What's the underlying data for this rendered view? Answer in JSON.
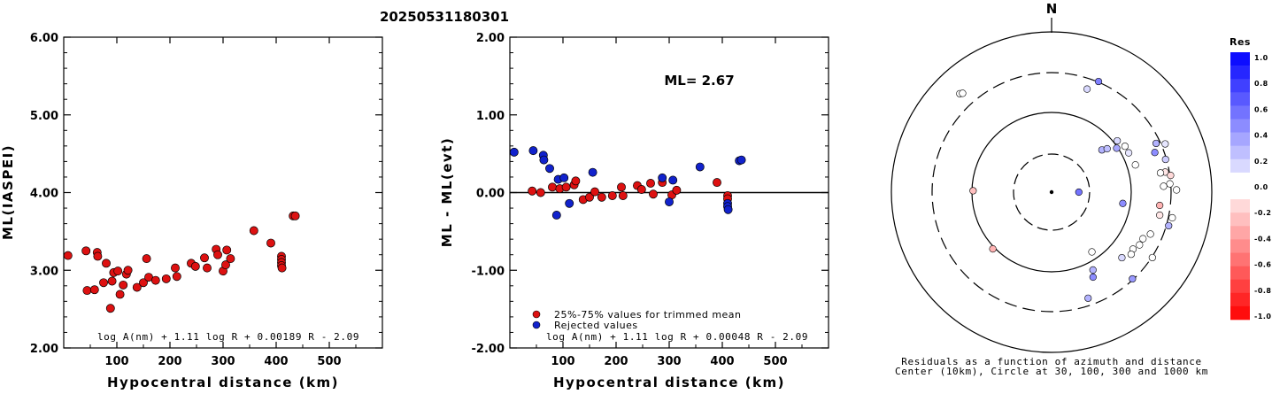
{
  "title": "20250531180301",
  "colors": {
    "trimmed": "#dd1111",
    "rejected": "#1122cc",
    "zero_line": "#000000"
  },
  "chart_data": [
    {
      "type": "scatter",
      "id": "ml-vs-distance",
      "ylabel": "ML(IASPEI)",
      "xlabel": "Hypocentral distance (km)",
      "xlim": [
        0,
        600
      ],
      "ylim": [
        2.0,
        6.0
      ],
      "xticks": [
        "100",
        "200",
        "300",
        "400",
        "500"
      ],
      "yticks": [
        "2.00",
        "3.00",
        "4.00",
        "5.00",
        "6.00"
      ],
      "formula": "log A(nm) + 1.11 log R + 0.00189 R - 2.09",
      "points": [
        [
          8,
          3.19
        ],
        [
          42,
          3.25
        ],
        [
          44,
          2.74
        ],
        [
          58,
          2.75
        ],
        [
          63,
          3.23
        ],
        [
          64,
          3.18
        ],
        [
          75,
          2.84
        ],
        [
          80,
          3.09
        ],
        [
          88,
          2.51
        ],
        [
          91,
          2.86
        ],
        [
          94,
          2.97
        ],
        [
          102,
          2.99
        ],
        [
          106,
          2.69
        ],
        [
          112,
          2.81
        ],
        [
          118,
          2.95
        ],
        [
          121,
          3.0
        ],
        [
          138,
          2.78
        ],
        [
          150,
          2.84
        ],
        [
          156,
          3.15
        ],
        [
          160,
          2.91
        ],
        [
          173,
          2.87
        ],
        [
          193,
          2.89
        ],
        [
          210,
          3.03
        ],
        [
          213,
          2.92
        ],
        [
          240,
          3.09
        ],
        [
          248,
          3.05
        ],
        [
          265,
          3.16
        ],
        [
          270,
          3.03
        ],
        [
          287,
          3.27
        ],
        [
          290,
          3.2
        ],
        [
          300,
          2.99
        ],
        [
          305,
          3.07
        ],
        [
          307,
          3.26
        ],
        [
          314,
          3.15
        ],
        [
          358,
          3.51
        ],
        [
          390,
          3.35
        ],
        [
          410,
          3.18
        ],
        [
          410,
          3.14
        ],
        [
          410,
          3.1
        ],
        [
          410,
          3.06
        ],
        [
          411,
          3.03
        ],
        [
          432,
          3.7
        ],
        [
          436,
          3.7
        ]
      ]
    },
    {
      "type": "scatter",
      "id": "residual-vs-distance",
      "ylabel": "ML - ML(evt)",
      "xlabel": "Hypocentral distance (km)",
      "xlim": [
        0,
        600
      ],
      "ylim": [
        -2.0,
        2.0
      ],
      "xticks": [
        "100",
        "200",
        "300",
        "400",
        "500"
      ],
      "yticks": [
        "-2.00",
        "-1.00",
        "0.00",
        "1.00",
        "2.00"
      ],
      "annotation": "ML= 2.67",
      "formula": "log A(nm) + 1.11 log R + 0.00048 R - 2.09",
      "legend": [
        {
          "label": "25%-75% values for trimmed mean",
          "group": "trimmed"
        },
        {
          "label": "Rejected values",
          "group": "rejected"
        }
      ],
      "series": [
        {
          "group": "trimmed",
          "points": [
            [
              42,
              0.02
            ],
            [
              58,
              0.0
            ],
            [
              80,
              0.07
            ],
            [
              94,
              0.05
            ],
            [
              106,
              0.07
            ],
            [
              121,
              0.1
            ],
            [
              124,
              0.15
            ],
            [
              138,
              -0.09
            ],
            [
              150,
              -0.06
            ],
            [
              160,
              0.01
            ],
            [
              173,
              -0.06
            ],
            [
              193,
              -0.04
            ],
            [
              210,
              0.07
            ],
            [
              213,
              -0.04
            ],
            [
              240,
              0.09
            ],
            [
              248,
              0.04
            ],
            [
              265,
              0.12
            ],
            [
              270,
              -0.02
            ],
            [
              287,
              0.13
            ],
            [
              305,
              -0.03
            ],
            [
              314,
              0.03
            ],
            [
              390,
              0.13
            ],
            [
              410,
              -0.04
            ],
            [
              410,
              -0.08
            ]
          ]
        },
        {
          "group": "rejected",
          "points": [
            [
              8,
              0.52
            ],
            [
              44,
              0.54
            ],
            [
              63,
              0.48
            ],
            [
              64,
              0.42
            ],
            [
              75,
              0.31
            ],
            [
              88,
              -0.29
            ],
            [
              91,
              0.17
            ],
            [
              102,
              0.19
            ],
            [
              112,
              -0.14
            ],
            [
              156,
              0.26
            ],
            [
              287,
              0.19
            ],
            [
              300,
              -0.12
            ],
            [
              307,
              0.16
            ],
            [
              358,
              0.33
            ],
            [
              410,
              -0.14
            ],
            [
              410,
              -0.18
            ],
            [
              411,
              -0.22
            ],
            [
              432,
              0.41
            ],
            [
              436,
              0.42
            ]
          ]
        }
      ]
    },
    {
      "type": "polar-scatter",
      "id": "azimuth-residuals",
      "north_label": "N",
      "caption_line1": "Residuals as a function of azimuth and distance",
      "caption_line2": "Center (10km), Circle at 30, 100, 300 and 1000 km",
      "rings_km": [
        30,
        100,
        300,
        1000
      ],
      "legend_title": "Res",
      "legend_ticks": [
        "1.0",
        "0.8",
        "0.6",
        "0.4",
        "0.2",
        "0.0",
        "-0.2",
        "-0.4",
        "-0.6",
        "-0.8",
        "-1.0"
      ],
      "stations": [
        {
          "az": 90,
          "r": 0.17,
          "res": 0.55
        },
        {
          "az": 271,
          "r": 0.49,
          "res": -0.25
        },
        {
          "az": 317,
          "r": 0.84,
          "res": -0.02
        },
        {
          "az": 318,
          "r": 0.83,
          "res": -0.04
        },
        {
          "az": 19,
          "r": 0.68,
          "res": 0.15
        },
        {
          "az": 23,
          "r": 0.75,
          "res": 0.5
        },
        {
          "az": 50,
          "r": 0.41,
          "res": 0.3
        },
        {
          "az": 52,
          "r": 0.44,
          "res": 0.25
        },
        {
          "az": 52,
          "r": 0.52,
          "res": 0.15
        },
        {
          "az": 56,
          "r": 0.49,
          "res": 0.35
        },
        {
          "az": 58,
          "r": 0.54,
          "res": 0.05
        },
        {
          "az": 63,
          "r": 0.54,
          "res": 0.1
        },
        {
          "az": 65,
          "r": 0.72,
          "res": 0.3
        },
        {
          "az": 67,
          "r": 0.77,
          "res": 0.1
        },
        {
          "az": 69,
          "r": 0.69,
          "res": 0.45
        },
        {
          "az": 72,
          "r": 0.55,
          "res": 0.0
        },
        {
          "az": 74,
          "r": 0.74,
          "res": 0.2
        },
        {
          "az": 80,
          "r": 0.72,
          "res": -0.1
        },
        {
          "az": 80,
          "r": 0.69,
          "res": 0.0
        },
        {
          "az": 82,
          "r": 0.75,
          "res": -0.15
        },
        {
          "az": 86,
          "r": 0.74,
          "res": 0.05
        },
        {
          "az": 87,
          "r": 0.7,
          "res": 0.0
        },
        {
          "az": 89,
          "r": 0.78,
          "res": 0.08
        },
        {
          "az": 97,
          "r": 0.68,
          "res": -0.3
        },
        {
          "az": 102,
          "r": 0.77,
          "res": 0.05
        },
        {
          "az": 102,
          "r": 0.69,
          "res": -0.1
        },
        {
          "az": 99,
          "r": 0.45,
          "res": 0.45
        },
        {
          "az": 106,
          "r": 0.76,
          "res": 0.3
        },
        {
          "az": 113,
          "r": 0.67,
          "res": 0.05
        },
        {
          "az": 117,
          "r": 0.64,
          "res": -0.05
        },
        {
          "az": 121,
          "r": 0.64,
          "res": 0.0
        },
        {
          "az": 125,
          "r": 0.62,
          "res": -0.05
        },
        {
          "az": 123,
          "r": 0.75,
          "res": 0.02
        },
        {
          "az": 128,
          "r": 0.63,
          "res": 0.05
        },
        {
          "az": 133,
          "r": 0.6,
          "res": 0.15
        },
        {
          "az": 137,
          "r": 0.74,
          "res": 0.4
        },
        {
          "az": 146,
          "r": 0.45,
          "res": 0.0
        },
        {
          "az": 152,
          "r": 0.55,
          "res": 0.3
        },
        {
          "az": 154,
          "r": 0.59,
          "res": 0.45
        },
        {
          "az": 161,
          "r": 0.7,
          "res": 0.3
        },
        {
          "az": 226,
          "r": 0.51,
          "res": -0.3
        }
      ]
    }
  ]
}
